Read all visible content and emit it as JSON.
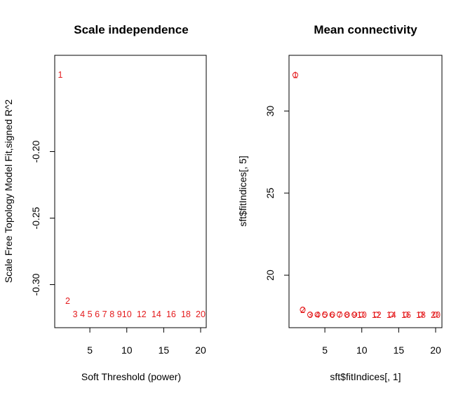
{
  "point_color": "#e41a1c",
  "chart_data": [
    {
      "type": "scatter",
      "title": "Scale independence",
      "xlabel": "Soft Threshold (power)",
      "ylabel": "Scale Free Topology Model Fit,signed R^2",
      "xlim": [
        1,
        20
      ],
      "ylim": [
        -0.325,
        -0.135
      ],
      "xticks": [
        5,
        10,
        15,
        20
      ],
      "yticks": [
        -0.2,
        -0.25,
        -0.3
      ],
      "xtick_labels": [
        "5",
        "10",
        "15",
        "20"
      ],
      "ytick_labels": [
        "-0.20",
        "-0.25",
        "-0.30"
      ],
      "marker": "text",
      "points": [
        {
          "x": 1,
          "y": -0.142,
          "label": "1"
        },
        {
          "x": 2,
          "y": -0.312,
          "label": "2"
        },
        {
          "x": 3,
          "y": -0.322,
          "label": "3"
        },
        {
          "x": 4,
          "y": -0.322,
          "label": "4"
        },
        {
          "x": 5,
          "y": -0.322,
          "label": "5"
        },
        {
          "x": 6,
          "y": -0.322,
          "label": "6"
        },
        {
          "x": 7,
          "y": -0.322,
          "label": "7"
        },
        {
          "x": 8,
          "y": -0.322,
          "label": "8"
        },
        {
          "x": 9,
          "y": -0.322,
          "label": "9"
        },
        {
          "x": 10,
          "y": -0.322,
          "label": "10"
        },
        {
          "x": 12,
          "y": -0.322,
          "label": "12"
        },
        {
          "x": 14,
          "y": -0.322,
          "label": "14"
        },
        {
          "x": 16,
          "y": -0.322,
          "label": "16"
        },
        {
          "x": 18,
          "y": -0.322,
          "label": "18"
        },
        {
          "x": 20,
          "y": -0.322,
          "label": "20"
        }
      ],
      "grid": false
    },
    {
      "type": "scatter",
      "title": "Mean connectivity",
      "xlabel": "sft$fitIndices[, 1]",
      "ylabel": "sft$fitIndices[, 5]",
      "xlim": [
        1,
        20
      ],
      "ylim": [
        17.4,
        32.8
      ],
      "xticks": [
        5,
        10,
        15,
        20
      ],
      "yticks": [
        20,
        25,
        30
      ],
      "xtick_labels": [
        "5",
        "10",
        "15",
        "20"
      ],
      "ytick_labels": [
        "20",
        "25",
        "30"
      ],
      "marker": "circle+text",
      "points": [
        {
          "x": 1,
          "y": 32.2,
          "label": "1"
        },
        {
          "x": 2,
          "y": 17.9,
          "label": "2"
        },
        {
          "x": 3,
          "y": 17.6,
          "label": "3"
        },
        {
          "x": 4,
          "y": 17.6,
          "label": "4"
        },
        {
          "x": 5,
          "y": 17.6,
          "label": "5"
        },
        {
          "x": 6,
          "y": 17.6,
          "label": "6"
        },
        {
          "x": 7,
          "y": 17.6,
          "label": "7"
        },
        {
          "x": 8,
          "y": 17.6,
          "label": "8"
        },
        {
          "x": 9,
          "y": 17.6,
          "label": "9"
        },
        {
          "x": 10,
          "y": 17.6,
          "label": "10"
        },
        {
          "x": 12,
          "y": 17.6,
          "label": "12"
        },
        {
          "x": 14,
          "y": 17.6,
          "label": "14"
        },
        {
          "x": 16,
          "y": 17.6,
          "label": "16"
        },
        {
          "x": 18,
          "y": 17.6,
          "label": "18"
        },
        {
          "x": 20,
          "y": 17.6,
          "label": "20"
        }
      ],
      "grid": false
    }
  ]
}
